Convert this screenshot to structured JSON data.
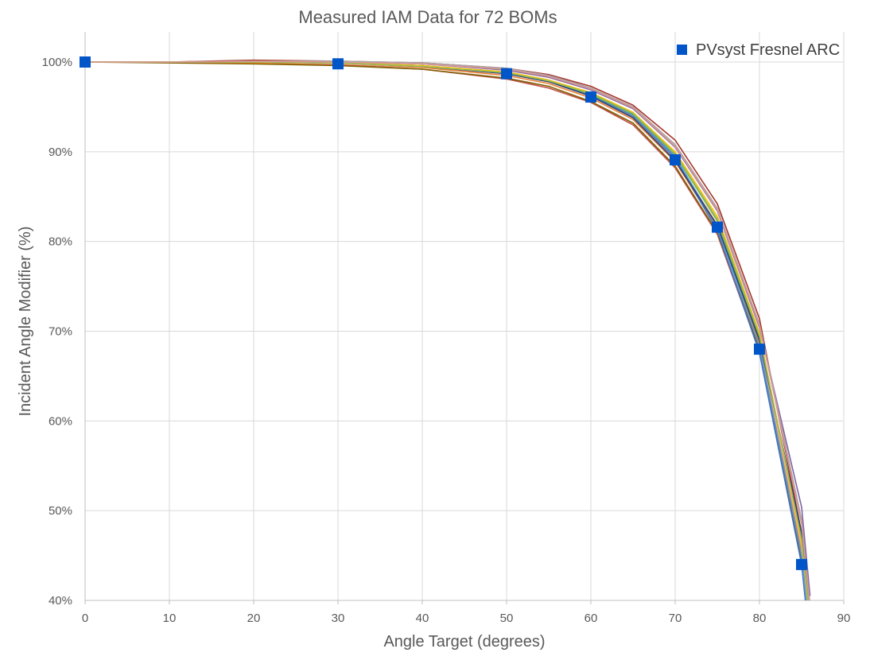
{
  "chart_data": {
    "type": "line",
    "title": "Measured IAM Data for 72 BOMs",
    "xlabel": "Angle Target (degrees)",
    "ylabel": "Incident Angle Modifier (%)",
    "xlim": [
      0,
      90
    ],
    "ylim": [
      40,
      100
    ],
    "xticks": [
      0,
      10,
      20,
      30,
      40,
      50,
      60,
      70,
      80,
      90
    ],
    "yticks": [
      40,
      50,
      60,
      70,
      80,
      90,
      100
    ],
    "ytick_suffix": "%",
    "grid": true,
    "legend_position": "top-right",
    "x": [
      0,
      10,
      20,
      30,
      40,
      50,
      55,
      60,
      65,
      70,
      75,
      80,
      85,
      86
    ],
    "measured_series": [
      {
        "color": "#a6362b",
        "values": [
          100,
          100,
          100.2,
          100.1,
          99.9,
          99.3,
          98.6,
          97.3,
          95.2,
          91.3,
          84.2,
          71.4,
          47.5,
          38.0
        ]
      },
      {
        "color": "#c0504d",
        "values": [
          100,
          100,
          99.9,
          99.7,
          99.2,
          98.1,
          97.1,
          95.5,
          93.0,
          88.2,
          80.8,
          67.8,
          45.0,
          36.0
        ]
      },
      {
        "color": "#7f6000",
        "values": [
          100,
          99.9,
          99.8,
          99.6,
          99.2,
          98.2,
          97.3,
          95.6,
          93.2,
          88.4,
          81.0,
          68.0,
          44.5,
          35.5
        ]
      },
      {
        "color": "#ed7d31",
        "values": [
          100,
          100,
          99.9,
          99.8,
          99.4,
          98.5,
          97.6,
          96.0,
          93.6,
          88.9,
          81.5,
          68.6,
          45.5,
          36.5
        ]
      },
      {
        "color": "#f4b183",
        "values": [
          100,
          100,
          100,
          99.8,
          99.5,
          98.7,
          97.8,
          96.2,
          93.9,
          89.2,
          81.9,
          69.0,
          46.0,
          37.0
        ]
      },
      {
        "color": "#4472c4",
        "values": [
          100,
          100,
          100,
          99.9,
          99.6,
          98.8,
          97.9,
          96.3,
          94.0,
          89.3,
          81.2,
          67.6,
          44.0,
          35.0
        ]
      },
      {
        "color": "#5b9bd5",
        "values": [
          100,
          100,
          100,
          99.9,
          99.6,
          98.9,
          98.0,
          96.4,
          94.1,
          89.5,
          81.6,
          68.3,
          45.0,
          36.0
        ]
      },
      {
        "color": "#70ad47",
        "values": [
          100,
          100,
          100,
          99.9,
          99.6,
          98.8,
          97.9,
          96.4,
          94.2,
          89.7,
          82.3,
          69.3,
          47.0,
          38.0
        ]
      },
      {
        "color": "#264478",
        "values": [
          100,
          100,
          100,
          99.9,
          99.5,
          98.7,
          97.8,
          96.2,
          93.8,
          89.0,
          81.8,
          69.0,
          47.5,
          38.5
        ]
      },
      {
        "color": "#8064a2",
        "values": [
          100,
          100,
          100.1,
          100,
          99.8,
          99.1,
          98.3,
          96.9,
          94.8,
          90.5,
          83.4,
          70.4,
          50.4,
          40.5
        ]
      },
      {
        "color": "#a5a5a5",
        "values": [
          100,
          100,
          100.1,
          100.1,
          99.9,
          99.3,
          98.5,
          97.1,
          95.0,
          90.8,
          83.7,
          70.8,
          49.0,
          39.5
        ]
      },
      {
        "color": "#ffc000",
        "values": [
          100,
          100,
          100,
          99.9,
          99.6,
          98.9,
          98.0,
          96.6,
          94.4,
          90.0,
          82.8,
          69.8,
          46.5,
          37.5
        ]
      },
      {
        "color": "#9bbb59",
        "values": [
          100,
          100,
          100,
          99.9,
          99.5,
          98.8,
          97.9,
          96.5,
          94.3,
          89.8,
          82.5,
          69.5,
          46.8,
          37.8
        ]
      },
      {
        "color": "#d99694",
        "values": [
          100,
          100,
          100.1,
          100,
          99.8,
          99.2,
          98.4,
          97.0,
          94.9,
          90.6,
          83.5,
          70.6,
          48.5,
          39.0
        ]
      }
    ],
    "series": [
      {
        "name": "PVsyst Fresnel ARC",
        "color": "#0055c9",
        "x": [
          0,
          30,
          50,
          60,
          70,
          75,
          80,
          85
        ],
        "values": [
          100,
          99.8,
          98.7,
          96.1,
          89.1,
          81.6,
          68.0,
          44.0
        ]
      }
    ]
  }
}
